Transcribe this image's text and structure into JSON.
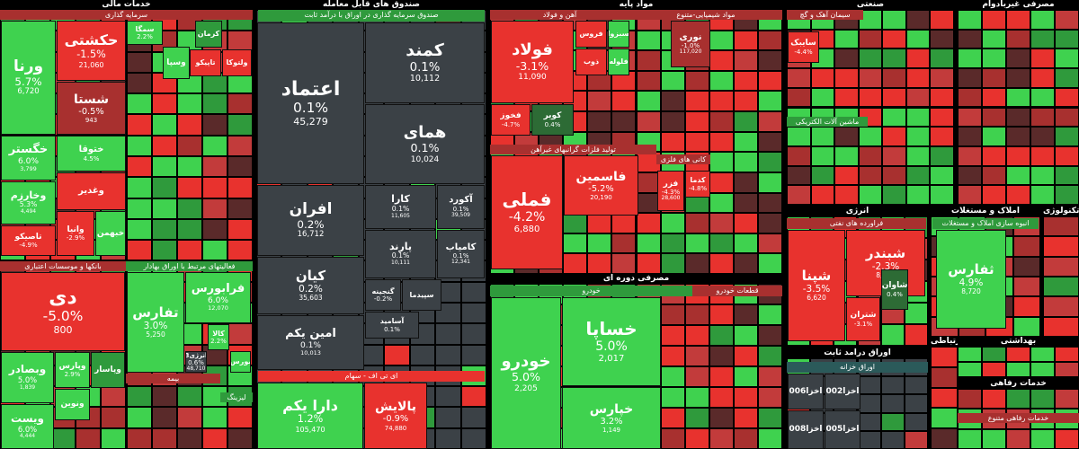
{
  "sectors": [
    {
      "title": "خدمات مالی"
    },
    {
      "title": "صندوق های قابل معامله"
    },
    {
      "title": "مواد پایه"
    },
    {
      "title": "صنعتی"
    },
    {
      "title": "مصرفی غیربادوام"
    },
    {
      "title": "مصرفی دوره ای"
    },
    {
      "title": "انرژی"
    },
    {
      "title": "املاک و مستغلات"
    },
    {
      "title": "تکنولوژی"
    },
    {
      "title": "اوراق درآمد ثابت"
    },
    {
      "title": "بهداشتی"
    },
    {
      "title": "ارتباطی"
    },
    {
      "title": "خدمات رفاهی"
    }
  ],
  "groups": [
    {
      "title": "سرمایه گذاری"
    },
    {
      "title": "بانکها و موسسات اعتباری"
    },
    {
      "title": "فعالیتهای مرتبط با اوراق بهادار"
    },
    {
      "title": "بیمه"
    },
    {
      "title": "لیزینگ"
    },
    {
      "title": "صندوق سرمایه گذاری در اوراق با درآمد ثابت"
    },
    {
      "title": "ای تی اف - سهام"
    },
    {
      "title": "آهن و فولاد"
    },
    {
      "title": "مواد شیمیایی-متنوع"
    },
    {
      "title": "تولید فلزات گرانبهای غیرآهن"
    },
    {
      "title": "کانی های فلزی"
    },
    {
      "title": "خودرو"
    },
    {
      "title": "قطعات خودرو"
    },
    {
      "title": "سیمان آهک و گچ"
    },
    {
      "title": "ماشین آلات الکتریکی"
    },
    {
      "title": "فراورده های نفتی"
    },
    {
      "title": "انبوه سازی املاک و مستغلات"
    },
    {
      "title": "اوراق خزانه"
    },
    {
      "title": "خدمات رفاهی متنوع"
    }
  ],
  "tiles": [
    {
      "name": "ورنا",
      "change": "5.7%",
      "volume": "6,720"
    },
    {
      "name": "حکشتی",
      "change": "-1.5%",
      "volume": "21,060"
    },
    {
      "name": "شستا",
      "change": "-0.5%",
      "volume": "943"
    },
    {
      "name": "خگستر",
      "change": "6.0%",
      "volume": "3,799"
    },
    {
      "name": "وخارزم",
      "change": "5.3%",
      "volume": "4,494"
    },
    {
      "name": "تاصیکو",
      "change": "-4.9%"
    },
    {
      "name": "ختوقا",
      "change": "4.5%"
    },
    {
      "name": "وغدیر"
    },
    {
      "name": "وانیا",
      "change": "-2.9%"
    },
    {
      "name": "خبهمن"
    },
    {
      "name": "سمگا",
      "change": "2.2%"
    },
    {
      "name": "کرمان"
    },
    {
      "name": "وسپا"
    },
    {
      "name": "تاپیکو"
    },
    {
      "name": "ولتوکا"
    },
    {
      "name": "دی",
      "change": "-5.0%",
      "volume": "800"
    },
    {
      "name": "وبصادر",
      "change": "5.0%",
      "volume": "1,839"
    },
    {
      "name": "ویست",
      "change": "6.0%",
      "volume": "4,444"
    },
    {
      "name": "وپارس",
      "change": "2.9%"
    },
    {
      "name": "ونوین"
    },
    {
      "name": "وپاسار"
    },
    {
      "name": "تفارس",
      "change": "3.0%",
      "volume": "5,250"
    },
    {
      "name": "فرابورس",
      "change": "6.0%",
      "volume": "12,070"
    },
    {
      "name": "کالا",
      "change": "2.2%"
    },
    {
      "name": "انرژی3",
      "change": "0.6%",
      "volume": "48,710"
    },
    {
      "name": "بورس"
    },
    {
      "name": "اعتماد",
      "change": "0.1%",
      "volume": "45,279"
    },
    {
      "name": "کمند",
      "change": "0.1%",
      "volume": "10,112"
    },
    {
      "name": "همای",
      "change": "0.1%",
      "volume": "10,024"
    },
    {
      "name": "افران",
      "change": "0.2%",
      "volume": "16,712"
    },
    {
      "name": "کیان",
      "change": "0.2%",
      "volume": "35,603"
    },
    {
      "name": "امین یکم",
      "change": "0.1%",
      "volume": "10,013"
    },
    {
      "name": "کارا",
      "change": "0.1%",
      "volume": "11,605"
    },
    {
      "name": "آکورد",
      "change": "0.1%",
      "volume": "39,509"
    },
    {
      "name": "پارند",
      "change": "0.1%",
      "volume": "10,111"
    },
    {
      "name": "کامیاب",
      "change": "0.1%",
      "volume": "12,341"
    },
    {
      "name": "گنجینه",
      "change": "-0.2%"
    },
    {
      "name": "سپیدما"
    },
    {
      "name": "آسامید",
      "change": "0.1%"
    },
    {
      "name": "دارا یکم",
      "change": "1.2%",
      "volume": "105,470"
    },
    {
      "name": "پالایش",
      "change": "-0.9%",
      "volume": "74,880"
    },
    {
      "name": "فولاد",
      "change": "-3.1%",
      "volume": "11,090"
    },
    {
      "name": "فروس"
    },
    {
      "name": "فسبزوار"
    },
    {
      "name": "ذوب"
    },
    {
      "name": "فلوله"
    },
    {
      "name": "فخوز",
      "change": "-4.7%"
    },
    {
      "name": "کویر",
      "change": "0.4%"
    },
    {
      "name": "نوری",
      "change": "-1.0%",
      "volume": "117,020"
    },
    {
      "name": "فملی",
      "change": "-4.2%",
      "volume": "6,880"
    },
    {
      "name": "فاسمین",
      "change": "-5.2%",
      "volume": "20,190"
    },
    {
      "name": "فزر",
      "change": "-4.3%",
      "volume": "28,600"
    },
    {
      "name": "کدما",
      "change": "-4.8%"
    },
    {
      "name": "خودرو",
      "change": "5.0%",
      "volume": "2,205"
    },
    {
      "name": "خساپا",
      "change": "5.0%",
      "volume": "2,017"
    },
    {
      "name": "خپارس",
      "change": "3.2%",
      "volume": "1,149"
    },
    {
      "name": "سایبک",
      "change": "-4.4%"
    },
    {
      "name": "شبندر",
      "change": "-2.3%",
      "volume": "8,970"
    },
    {
      "name": "شپنا",
      "change": "-3.5%",
      "volume": "6,620"
    },
    {
      "name": "شتران",
      "change": "-3.1%"
    },
    {
      "name": "شاوان",
      "change": "0.4%"
    },
    {
      "name": "ثفارس",
      "change": "4.9%",
      "volume": "8,720"
    },
    {
      "name": "اخزا006"
    },
    {
      "name": "اخزا002"
    },
    {
      "name": "اخزا008"
    },
    {
      "name": "اخزا005"
    }
  ]
}
